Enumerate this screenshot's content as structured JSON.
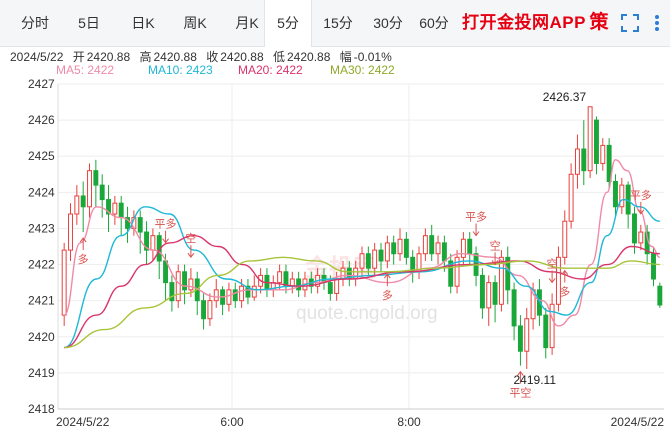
{
  "tabs": [
    {
      "label": "分时",
      "active": false
    },
    {
      "label": "5日",
      "active": false
    },
    {
      "label": "日K",
      "active": false
    },
    {
      "label": "周K",
      "active": false
    },
    {
      "label": "月K",
      "active": false
    },
    {
      "label": "5分",
      "active": true
    },
    {
      "label": "15分",
      "active": false
    },
    {
      "label": "30分",
      "active": false
    },
    {
      "label": "60分",
      "active": false
    }
  ],
  "brand": "打开金投网APP",
  "icons": {
    "strategy_label": "策",
    "fullscreen": "fullscreen-icon",
    "more": "more-icon"
  },
  "quote": {
    "date": "2024/5/22",
    "open_label": "开",
    "open": "2420.88",
    "high_label": "高",
    "high": "2420.88",
    "close_label": "收",
    "close": "2420.88",
    "low_label": "低",
    "low": "2420.88",
    "change_label": "幅",
    "change": "-0.01%"
  },
  "ma_legend": [
    {
      "label": "MA5: 2422",
      "color": "#f08aa8"
    },
    {
      "label": "MA10: 2423",
      "color": "#1fb8d6"
    },
    {
      "label": "MA20: 2422",
      "color": "#d9346a"
    },
    {
      "label": "MA30: 2422",
      "color": "#a8c43a"
    }
  ],
  "watermark": {
    "logo": "金投网",
    "url": "quote.cngold.org"
  },
  "colors": {
    "up": "#e8413c",
    "down": "#1aa73a",
    "grid": "#eeeeee",
    "signal": "#d9534f"
  },
  "chart_data": {
    "type": "candlestick",
    "ylim": [
      2418,
      2427
    ],
    "y_ticks": [
      "2418",
      "2419",
      "2420",
      "2421",
      "2422",
      "2423",
      "2424",
      "2425",
      "2426",
      "2427"
    ],
    "x_ticks": [
      "2024/5/22",
      "6:00",
      "8:00",
      "2024/5/22"
    ],
    "high_label": "2426.37",
    "low_label": "2419.11",
    "candles": [
      [
        2420.6,
        2422.4,
        2420.3,
        2422.6
      ],
      [
        2422.4,
        2423.4,
        2422.1,
        2423.7
      ],
      [
        2423.4,
        2423.9,
        2423.1,
        2424.2
      ],
      [
        2423.9,
        2423.6,
        2422.9,
        2424.3
      ],
      [
        2423.6,
        2424.6,
        2423.3,
        2424.8
      ],
      [
        2424.6,
        2424.2,
        2423.6,
        2424.9
      ],
      [
        2424.2,
        2423.8,
        2423.3,
        2424.5
      ],
      [
        2423.8,
        2423.4,
        2422.9,
        2424.2
      ],
      [
        2423.4,
        2423.7,
        2423.1,
        2423.9
      ],
      [
        2423.7,
        2423.3,
        2422.8,
        2423.9
      ],
      [
        2423.3,
        2423.0,
        2422.6,
        2423.6
      ],
      [
        2423.0,
        2423.3,
        2422.8,
        2423.5
      ],
      [
        2423.3,
        2422.9,
        2422.3,
        2423.5
      ],
      [
        2422.9,
        2422.4,
        2422.0,
        2423.2
      ],
      [
        2422.4,
        2422.8,
        2422.1,
        2423.0
      ],
      [
        2422.8,
        2422.1,
        2421.6,
        2422.9
      ],
      [
        2422.1,
        2421.5,
        2421.0,
        2422.3
      ],
      [
        2421.5,
        2421.0,
        2420.7,
        2421.7
      ],
      [
        2421.0,
        2421.8,
        2420.8,
        2422.0
      ],
      [
        2421.8,
        2421.3,
        2420.9,
        2422.0
      ],
      [
        2421.3,
        2421.6,
        2421.1,
        2421.9
      ],
      [
        2421.6,
        2421.0,
        2420.6,
        2421.8
      ],
      [
        2421.0,
        2420.5,
        2420.2,
        2421.2
      ],
      [
        2420.5,
        2421.0,
        2420.3,
        2421.2
      ],
      [
        2421.0,
        2421.3,
        2420.8,
        2421.6
      ],
      [
        2421.3,
        2420.9,
        2420.6,
        2421.4
      ],
      [
        2420.9,
        2421.3,
        2420.7,
        2421.5
      ],
      [
        2421.3,
        2421.0,
        2420.8,
        2421.5
      ],
      [
        2421.0,
        2421.4,
        2420.8,
        2421.6
      ],
      [
        2421.4,
        2421.1,
        2420.9,
        2421.6
      ],
      [
        2421.1,
        2421.4,
        2421.0,
        2421.7
      ],
      [
        2421.4,
        2421.7,
        2421.2,
        2421.9
      ],
      [
        2421.7,
        2421.3,
        2421.1,
        2421.9
      ],
      [
        2421.3,
        2421.5,
        2421.1,
        2421.7
      ],
      [
        2421.5,
        2421.8,
        2421.3,
        2422.0
      ],
      [
        2421.8,
        2421.4,
        2421.2,
        2422.0
      ],
      [
        2421.4,
        2421.6,
        2421.2,
        2421.8
      ],
      [
        2421.6,
        2421.3,
        2421.1,
        2421.8
      ],
      [
        2421.3,
        2421.6,
        2421.1,
        2421.8
      ],
      [
        2421.6,
        2421.4,
        2421.2,
        2421.8
      ],
      [
        2421.4,
        2421.7,
        2421.2,
        2421.9
      ],
      [
        2421.7,
        2421.5,
        2421.3,
        2421.9
      ],
      [
        2421.5,
        2421.2,
        2421.0,
        2421.7
      ],
      [
        2421.2,
        2421.6,
        2421.0,
        2421.8
      ],
      [
        2421.6,
        2421.9,
        2421.4,
        2422.1
      ],
      [
        2421.9,
        2421.6,
        2421.4,
        2422.1
      ],
      [
        2421.6,
        2421.9,
        2421.4,
        2422.1
      ],
      [
        2421.9,
        2422.3,
        2421.7,
        2422.5
      ],
      [
        2422.3,
        2421.9,
        2421.7,
        2422.5
      ],
      [
        2421.9,
        2422.4,
        2421.7,
        2422.6
      ],
      [
        2422.4,
        2422.1,
        2421.8,
        2422.6
      ],
      [
        2422.1,
        2422.6,
        2421.9,
        2422.8
      ],
      [
        2422.6,
        2422.3,
        2422.0,
        2422.8
      ],
      [
        2422.3,
        2422.7,
        2422.1,
        2423.0
      ],
      [
        2422.7,
        2422.2,
        2422.0,
        2422.9
      ],
      [
        2422.2,
        2421.8,
        2421.5,
        2422.4
      ],
      [
        2421.8,
        2422.3,
        2421.6,
        2422.5
      ],
      [
        2422.3,
        2422.8,
        2422.1,
        2423.0
      ],
      [
        2422.8,
        2422.3,
        2422.1,
        2423.1
      ],
      [
        2422.3,
        2422.6,
        2422.0,
        2422.8
      ],
      [
        2422.6,
        2422.1,
        2421.8,
        2422.8
      ],
      [
        2422.1,
        2421.4,
        2421.2,
        2422.3
      ],
      [
        2421.4,
        2422.2,
        2421.2,
        2422.4
      ],
      [
        2422.2,
        2422.7,
        2422.0,
        2422.9
      ],
      [
        2422.7,
        2422.3,
        2422.0,
        2422.9
      ],
      [
        2422.3,
        2421.7,
        2421.4,
        2422.5
      ],
      [
        2421.7,
        2420.8,
        2420.5,
        2421.9
      ],
      [
        2420.8,
        2421.5,
        2420.3,
        2421.7
      ],
      [
        2421.5,
        2420.9,
        2420.4,
        2421.7
      ],
      [
        2420.9,
        2422.2,
        2420.7,
        2422.4
      ],
      [
        2422.2,
        2421.3,
        2420.9,
        2422.5
      ],
      [
        2421.3,
        2420.3,
        2419.9,
        2421.5
      ],
      [
        2420.3,
        2419.6,
        2419.2,
        2420.6
      ],
      [
        2419.6,
        2420.5,
        2419.11,
        2420.8
      ],
      [
        2420.5,
        2421.3,
        2420.2,
        2421.5
      ],
      [
        2421.3,
        2420.6,
        2420.3,
        2421.6
      ],
      [
        2420.6,
        2419.7,
        2419.4,
        2420.8
      ],
      [
        2419.7,
        2420.9,
        2419.5,
        2421.2
      ],
      [
        2420.9,
        2422.2,
        2420.7,
        2422.5
      ],
      [
        2422.2,
        2423.2,
        2422.0,
        2423.5
      ],
      [
        2423.2,
        2424.5,
        2423.0,
        2424.8
      ],
      [
        2424.5,
        2425.2,
        2424.1,
        2425.6
      ],
      [
        2425.2,
        2424.6,
        2424.2,
        2426.0
      ],
      [
        2424.6,
        2426.37,
        2424.4,
        2426.37
      ],
      [
        2426.0,
        2424.8,
        2424.5,
        2426.1
      ],
      [
        2424.8,
        2425.3,
        2424.6,
        2425.5
      ],
      [
        2425.3,
        2424.3,
        2424.1,
        2425.5
      ],
      [
        2424.3,
        2423.6,
        2423.3,
        2424.5
      ],
      [
        2423.6,
        2424.2,
        2423.4,
        2424.4
      ],
      [
        2424.2,
        2423.4,
        2423.0,
        2424.3
      ],
      [
        2423.4,
        2422.6,
        2422.3,
        2423.6
      ],
      [
        2422.6,
        2422.9,
        2422.4,
        2423.1
      ],
      [
        2422.9,
        2422.3,
        2422.0,
        2423.1
      ],
      [
        2422.3,
        2421.6,
        2421.4,
        2422.5
      ],
      [
        2421.4,
        2420.88,
        2420.8,
        2421.5
      ]
    ],
    "signals": [
      {
        "label": "多",
        "index": 5,
        "dir": "up"
      },
      {
        "label": "平多",
        "index": 25,
        "dir": "down"
      },
      {
        "label": "空",
        "index": 31,
        "dir": "down"
      },
      {
        "label": "多",
        "index": 80,
        "dir": "up"
      },
      {
        "label": "平多",
        "index": 101,
        "dir": "down"
      },
      {
        "label": "空",
        "index": 106,
        "dir": "down"
      },
      {
        "label": "平空",
        "index": 113,
        "dir": "up"
      },
      {
        "label": "多",
        "index": 123,
        "dir": "up"
      },
      {
        "label": "空",
        "index": 121,
        "dir": "down"
      },
      {
        "label": "平多",
        "index": 143,
        "dir": "down"
      }
    ],
    "series": [
      {
        "name": "MA5",
        "color": "#f08aa8",
        "values": [
          [
            0,
            2420.6
          ],
          [
            4,
            2422.6
          ],
          [
            8,
            2423.6
          ],
          [
            14,
            2423.3
          ],
          [
            22,
            2422.4
          ],
          [
            30,
            2421.4
          ],
          [
            38,
            2421.1
          ],
          [
            46,
            2421.3
          ],
          [
            54,
            2421.3
          ],
          [
            62,
            2421.5
          ],
          [
            70,
            2421.7
          ],
          [
            80,
            2421.5
          ],
          [
            90,
            2421.9
          ],
          [
            98,
            2422.3
          ],
          [
            106,
            2422.2
          ],
          [
            112,
            2421.7
          ],
          [
            118,
            2421.0
          ],
          [
            122,
            2420.3
          ],
          [
            126,
            2420.6
          ],
          [
            130,
            2422.0
          ],
          [
            134,
            2424.0
          ],
          [
            136,
            2424.9
          ],
          [
            139,
            2424.6
          ],
          [
            142,
            2423.5
          ],
          [
            145,
            2422.5
          ],
          [
            147,
            2422.2
          ]
        ]
      },
      {
        "name": "MA10",
        "color": "#1fb8d6",
        "values": [
          [
            0,
            2419.7
          ],
          [
            8,
            2421.6
          ],
          [
            14,
            2422.8
          ],
          [
            20,
            2423.6
          ],
          [
            26,
            2423.4
          ],
          [
            32,
            2422.4
          ],
          [
            40,
            2421.6
          ],
          [
            48,
            2421.3
          ],
          [
            56,
            2421.4
          ],
          [
            66,
            2421.6
          ],
          [
            76,
            2421.7
          ],
          [
            88,
            2421.8
          ],
          [
            100,
            2422.1
          ],
          [
            108,
            2421.9
          ],
          [
            114,
            2421.4
          ],
          [
            120,
            2420.7
          ],
          [
            124,
            2420.6
          ],
          [
            130,
            2421.5
          ],
          [
            134,
            2422.8
          ],
          [
            138,
            2423.8
          ],
          [
            142,
            2423.6
          ],
          [
            147,
            2423.2
          ]
        ]
      },
      {
        "name": "MA20",
        "color": "#d9346a",
        "values": [
          [
            0,
            2419.7
          ],
          [
            8,
            2420.6
          ],
          [
            14,
            2421.4
          ],
          [
            20,
            2422.0
          ],
          [
            26,
            2422.6
          ],
          [
            32,
            2422.8
          ],
          [
            38,
            2422.5
          ],
          [
            44,
            2422.0
          ],
          [
            50,
            2421.5
          ],
          [
            58,
            2421.4
          ],
          [
            70,
            2421.6
          ],
          [
            84,
            2421.8
          ],
          [
            100,
            2422.0
          ],
          [
            112,
            2422.1
          ],
          [
            120,
            2421.8
          ],
          [
            128,
            2421.6
          ],
          [
            134,
            2422.0
          ],
          [
            140,
            2422.5
          ],
          [
            147,
            2422.3
          ]
        ]
      },
      {
        "name": "MA30",
        "color": "#a8c43a",
        "values": [
          [
            0,
            2419.7
          ],
          [
            10,
            2420.2
          ],
          [
            20,
            2420.8
          ],
          [
            30,
            2421.2
          ],
          [
            38,
            2421.7
          ],
          [
            46,
            2422.1
          ],
          [
            54,
            2422.2
          ],
          [
            62,
            2422.1
          ],
          [
            70,
            2421.8
          ],
          [
            80,
            2421.8
          ],
          [
            92,
            2421.9
          ],
          [
            104,
            2422.0
          ],
          [
            114,
            2422.1
          ],
          [
            124,
            2421.9
          ],
          [
            134,
            2421.9
          ],
          [
            140,
            2422.1
          ],
          [
            147,
            2422.0
          ]
        ]
      }
    ]
  }
}
